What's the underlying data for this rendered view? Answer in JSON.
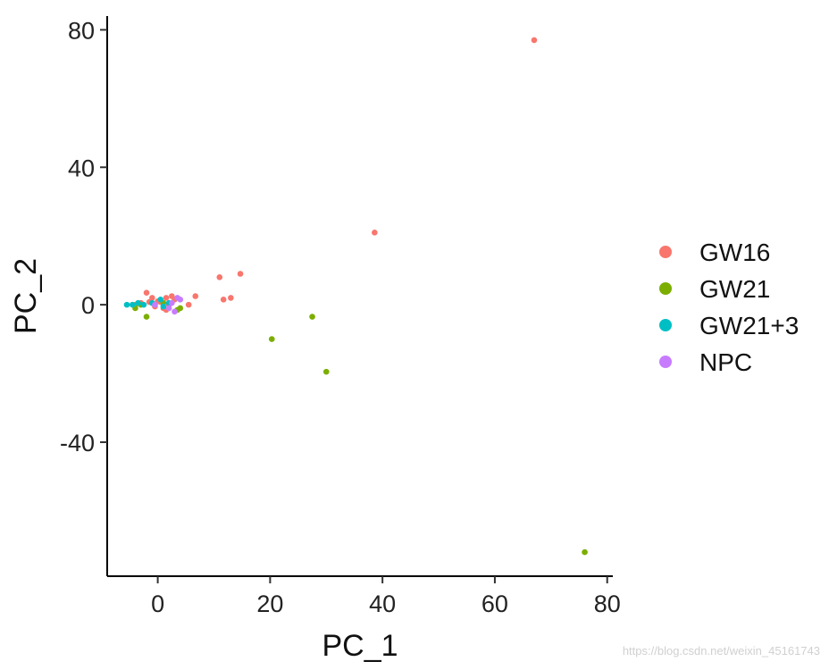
{
  "chart_data": {
    "type": "scatter",
    "title": "",
    "xlabel": "PC_1",
    "ylabel": "PC_2",
    "xlim": [
      -9,
      81
    ],
    "ylim": [
      -79,
      84
    ],
    "xticks": [
      0,
      20,
      40,
      60,
      80
    ],
    "yticks": [
      80,
      40,
      0,
      -40
    ],
    "xtick_labels": [
      "0",
      "20",
      "40",
      "60",
      "80"
    ],
    "ytick_labels": [
      "80",
      "40",
      "0",
      "-40"
    ],
    "grid": false,
    "legend_position": "right",
    "series": [
      {
        "name": "GW16",
        "color": "#F8766D",
        "points": [
          [
            67,
            77
          ],
          [
            38.6,
            21
          ],
          [
            14.7,
            9
          ],
          [
            11,
            8
          ],
          [
            13,
            2
          ],
          [
            11.7,
            1.5
          ],
          [
            6.7,
            2.5
          ],
          [
            5.5,
            0
          ],
          [
            -2,
            3.5
          ],
          [
            -1,
            2
          ],
          [
            -3,
            0.5
          ],
          [
            -4,
            0
          ],
          [
            0,
            1
          ],
          [
            1.5,
            2
          ],
          [
            2.5,
            2.5
          ],
          [
            1,
            -1
          ],
          [
            1.5,
            -1.5
          ],
          [
            0.5,
            0.8
          ],
          [
            3,
            1.5
          ],
          [
            -1.5,
            0.8
          ],
          [
            2,
            0
          ],
          [
            -0.5,
            -0.5
          ]
        ]
      },
      {
        "name": "GW21",
        "color": "#7CAE00",
        "points": [
          [
            76,
            -72
          ],
          [
            27.5,
            -3.5
          ],
          [
            20.3,
            -10
          ],
          [
            30,
            -19.5
          ],
          [
            -2,
            -3.5
          ],
          [
            -4,
            -1
          ],
          [
            4,
            -1
          ],
          [
            3.5,
            -1.5
          ],
          [
            -3,
            0
          ],
          [
            1,
            0.5
          ]
        ]
      },
      {
        "name": "GW21+3",
        "color": "#00BFC4",
        "points": [
          [
            -5.5,
            0
          ],
          [
            -4.5,
            0
          ],
          [
            -3.5,
            0.5
          ],
          [
            -1,
            0.5
          ],
          [
            0.5,
            1.5
          ],
          [
            2,
            0.5
          ],
          [
            -2.5,
            0
          ],
          [
            1,
            -0.5
          ]
        ]
      },
      {
        "name": "NPC",
        "color": "#C77CFF",
        "points": [
          [
            3,
            -2
          ],
          [
            2.5,
            0.5
          ],
          [
            4,
            1.5
          ],
          [
            3.5,
            2
          ],
          [
            -0.5,
            0
          ],
          [
            2,
            -1
          ]
        ]
      }
    ]
  },
  "watermark": "https://blog.csdn.net/weixin_45161743"
}
